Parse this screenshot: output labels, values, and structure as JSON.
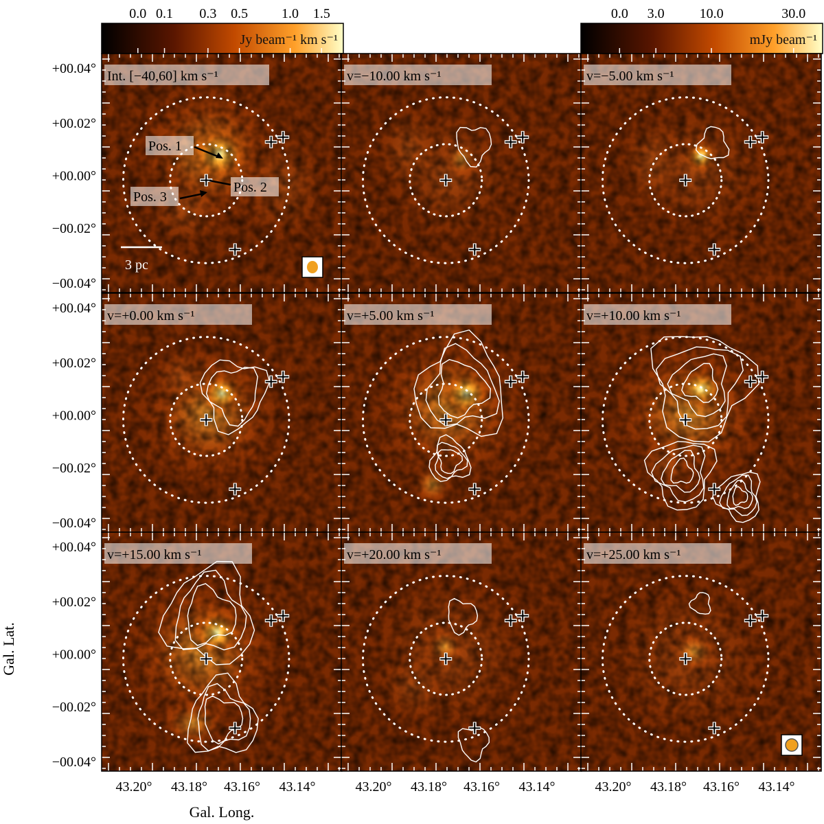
{
  "figure": {
    "ylabel": "Gal. Lat.",
    "xlabel": "Gal. Long.",
    "lat_ticks": [
      "+00.04°",
      "+00.02°",
      "+00.00°",
      "−00.02°",
      "−00.04°"
    ],
    "long_ticks": [
      "43.20°",
      "43.18°",
      "43.16°",
      "43.14°"
    ]
  },
  "colorbars": {
    "left": {
      "ticks": [
        "0.0",
        "0.1",
        "0.3",
        "0.5",
        "1.0",
        "1.5"
      ],
      "unit": "Jy beam⁻¹ km s⁻¹"
    },
    "right": {
      "ticks": [
        "0.0",
        "3.0",
        "10.0",
        "30.0"
      ],
      "unit": "mJy beam⁻¹"
    }
  },
  "panels": [
    {
      "title": "Int. [−40,60] km s⁻¹",
      "contours": 0
    },
    {
      "title": "v=−10.00 km s⁻¹",
      "contours": 1
    },
    {
      "title": "v=−5.00 km s⁻¹",
      "contours": 1
    },
    {
      "title": "v=+0.00 km s⁻¹",
      "contours": 2
    },
    {
      "title": "v=+5.00 km s⁻¹",
      "contours": 3
    },
    {
      "title": "v=+10.00 km s⁻¹",
      "contours": 4
    },
    {
      "title": "v=+15.00 km s⁻¹",
      "contours": 3
    },
    {
      "title": "v=+20.00 km s⁻¹",
      "contours": 1
    },
    {
      "title": "v=+25.00 km s⁻¹",
      "contours": 1
    }
  ],
  "annotations": {
    "pos1": "Pos. 1",
    "pos2": "Pos. 2",
    "pos3": "Pos. 3",
    "scalebar": "3 pc"
  },
  "colors": {
    "contour": "#ffffff",
    "beam": "#f0a020"
  }
}
